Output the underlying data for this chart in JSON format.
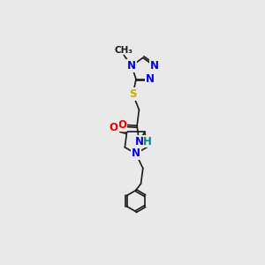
{
  "background_color": "#e9e9e9",
  "bond_color": "#1a1a1a",
  "atom_colors": {
    "N": "#0000ee",
    "O": "#ee0000",
    "S": "#ccaa00",
    "H": "#008888",
    "C": "#1a1a1a"
  },
  "figsize": [
    3.0,
    3.0
  ],
  "dpi": 100,
  "xlim": [
    0,
    10
  ],
  "ylim": [
    0,
    10
  ],
  "font_size_atom": 8.5,
  "lw": 1.2
}
